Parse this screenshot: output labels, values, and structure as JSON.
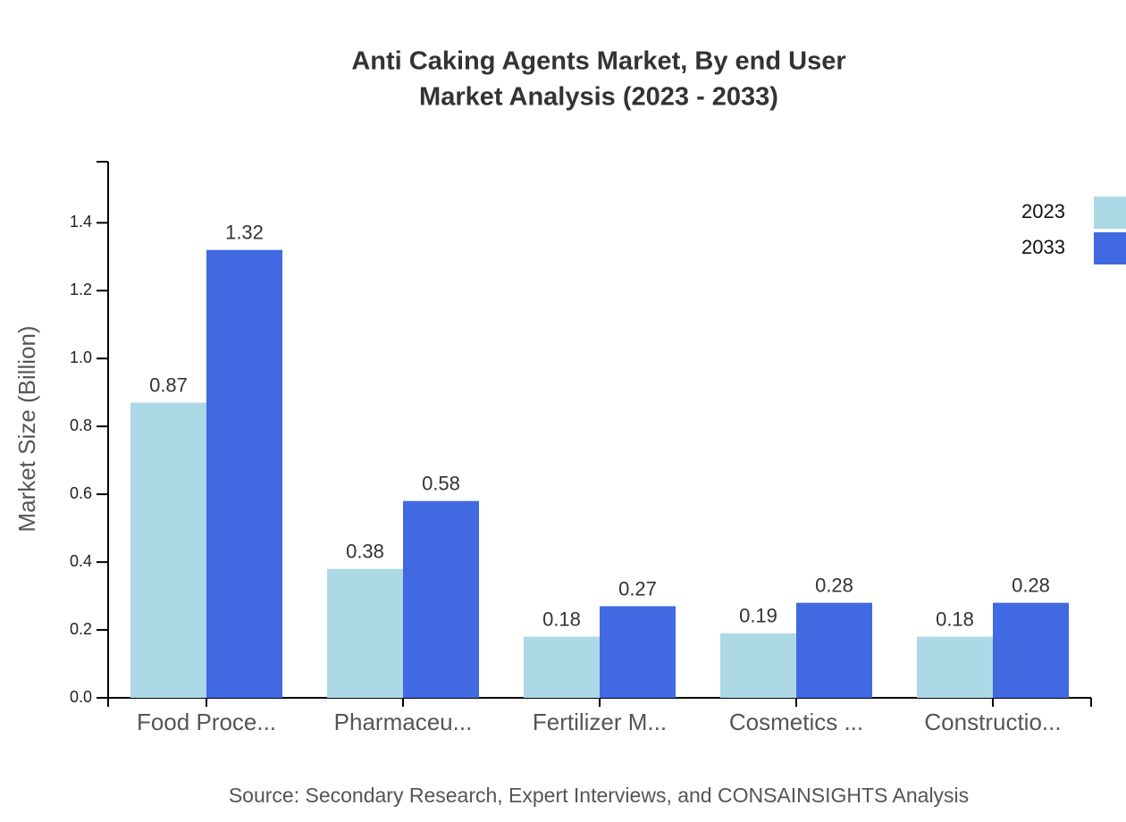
{
  "chart_data": {
    "type": "bar",
    "title": [
      "Anti Caking Agents Market, By end User",
      "Market Analysis (2023 - 2033)"
    ],
    "y_label": "Market Size (Billion)",
    "source": "Source: Secondary Research, Expert Interviews, and CONSAINSIGHTS Analysis",
    "categories": [
      "Food Proce...",
      "Pharmaceu...",
      "Fertilizer M...",
      "Cosmetics ...",
      "Constructio..."
    ],
    "series": [
      {
        "name": "2023",
        "color": "#add8e6",
        "values": [
          0.87,
          0.38,
          0.18,
          0.19,
          0.18
        ]
      },
      {
        "name": "2033",
        "color": "#4169e1",
        "values": [
          1.32,
          0.58,
          0.27,
          0.28,
          0.28
        ]
      }
    ],
    "ylim": [
      0,
      1.58
    ],
    "yticks": [
      {
        "value": 0,
        "label": "0.0"
      },
      0.2,
      0.4,
      0.6,
      0.8,
      {
        "value": 1,
        "label": "1.0"
      },
      1.2,
      1.4
    ],
    "legend": "top-right"
  }
}
